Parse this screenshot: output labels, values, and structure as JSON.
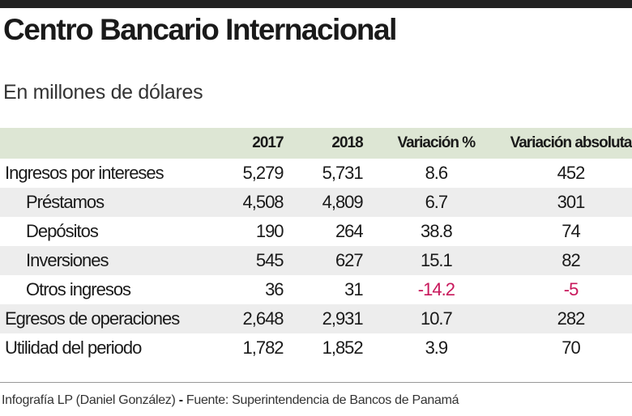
{
  "header": {
    "title": "Centro Bancario Internacional",
    "subtitle": "En millones de dólares"
  },
  "table": {
    "columns": [
      "2017",
      "2018",
      "Variación %",
      "Variación absoluta"
    ],
    "rows": [
      {
        "label": "Ingresos por intereses",
        "cells": [
          "5,279",
          "5,731",
          "8.6",
          "452"
        ],
        "subrows": [
          {
            "label": "Préstamos",
            "cells": [
              "4,508",
              "4,809",
              "6.7",
              "301"
            ]
          },
          {
            "label": "Depósitos",
            "cells": [
              "190",
              "264",
              "38.8",
              "74"
            ]
          },
          {
            "label": "Inversiones",
            "cells": [
              "545",
              "627",
              "15.1",
              "82"
            ]
          },
          {
            "label": "Otros ingresos",
            "cells": [
              "36",
              "31",
              "-14.2",
              "-5"
            ]
          }
        ]
      },
      {
        "label": "Egresos de operaciones",
        "cells": [
          "2,648",
          "2,931",
          "10.7",
          "282"
        ]
      },
      {
        "label": "Utilidad del periodo",
        "cells": [
          "1,782",
          "1,852",
          "3.9",
          "70"
        ]
      }
    ]
  },
  "footer": {
    "credit": "Infografía LP (Daniel González)",
    "separator": "-",
    "source": "Fuente: Superintendencia de Bancos de Panamá"
  }
}
